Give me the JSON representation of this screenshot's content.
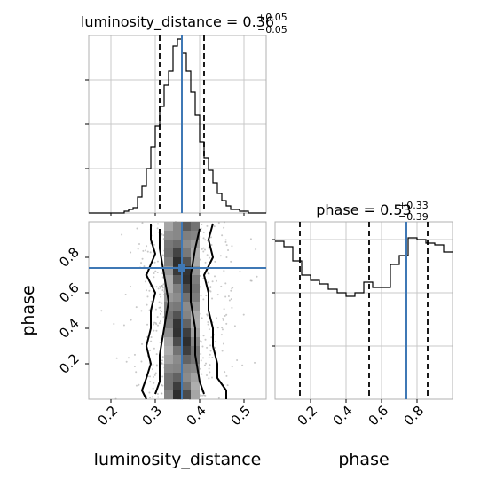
{
  "chart_data": [
    {
      "type": "histogram",
      "panel": "top-left",
      "title": {
        "main": "luminosity_distance = 0.36",
        "sup": "+0.05",
        "sub": "−0.05"
      },
      "xlim": [
        0.15,
        0.55
      ],
      "ylim": [
        0,
        1
      ],
      "yticks_labeled": false,
      "grid": true,
      "bins_x": [
        0.14,
        0.15,
        0.16,
        0.17,
        0.18,
        0.19,
        0.2,
        0.21,
        0.22,
        0.23,
        0.24,
        0.25,
        0.26,
        0.27,
        0.28,
        0.29,
        0.3,
        0.31,
        0.32,
        0.33,
        0.34,
        0.35,
        0.36,
        0.37,
        0.38,
        0.39,
        0.4,
        0.41,
        0.42,
        0.43,
        0.44,
        0.45,
        0.46,
        0.47,
        0.48,
        0.49,
        0.5,
        0.51,
        0.52,
        0.53,
        0.54,
        0.55
      ],
      "counts": [
        0,
        0,
        0,
        0,
        0,
        0,
        0,
        0,
        0,
        0.01,
        0.02,
        0.03,
        0.09,
        0.15,
        0.25,
        0.37,
        0.49,
        0.6,
        0.72,
        0.8,
        0.94,
        0.98,
        0.9,
        0.8,
        0.68,
        0.55,
        0.4,
        0.31,
        0.24,
        0.17,
        0.11,
        0.07,
        0.04,
        0.02,
        0.02,
        0.01,
        0.01,
        0,
        0,
        0,
        0
      ],
      "quantiles": [
        0.31,
        0.36,
        0.41
      ],
      "truth": 0.36
    },
    {
      "type": "heatmap",
      "panel": "bottom-left",
      "xlabel": "luminosity_distance",
      "ylabel": "phase",
      "xlim": [
        0.15,
        0.55
      ],
      "ylim": [
        0,
        1
      ],
      "xticks": [
        "0.2",
        "0.3",
        "0.4",
        "0.5"
      ],
      "yticks": [
        "0.2",
        "0.4",
        "0.6",
        "0.8"
      ],
      "truth": {
        "x": 0.36,
        "y": 0.74
      },
      "contours": [
        {
          "x": [
            0.29,
            0.29,
            0.3,
            0.28,
            0.3,
            0.29,
            0.29,
            0.28,
            0.29,
            0.28,
            0.27,
            0.28
          ],
          "y": [
            0.99,
            0.9,
            0.82,
            0.7,
            0.6,
            0.5,
            0.4,
            0.3,
            0.2,
            0.12,
            0.05,
            0.0
          ]
        },
        {
          "x": [
            0.43,
            0.42,
            0.43,
            0.41,
            0.42,
            0.42,
            0.43,
            0.43,
            0.44,
            0.44,
            0.46,
            0.46
          ],
          "y": [
            0.99,
            0.9,
            0.8,
            0.7,
            0.6,
            0.5,
            0.4,
            0.3,
            0.2,
            0.12,
            0.05,
            0.0
          ]
        },
        {
          "x": [
            0.31,
            0.31,
            0.32,
            0.33,
            0.32,
            0.31,
            0.31,
            0.3
          ],
          "y": [
            0.96,
            0.85,
            0.7,
            0.55,
            0.4,
            0.25,
            0.1,
            0.03
          ]
        },
        {
          "x": [
            0.4,
            0.39,
            0.38,
            0.38,
            0.39,
            0.39,
            0.4,
            0.41
          ],
          "y": [
            0.96,
            0.85,
            0.7,
            0.55,
            0.4,
            0.25,
            0.1,
            0.03
          ]
        }
      ]
    },
    {
      "type": "histogram",
      "panel": "bottom-right",
      "title": {
        "main": "phase = 0.53",
        "sup": "+0.33",
        "sub": "−0.39"
      },
      "xlabel": "phase",
      "xlim": [
        0,
        1
      ],
      "ylim": [
        0,
        1
      ],
      "xticks": [
        "0.2",
        "0.4",
        "0.6",
        "0.8"
      ],
      "yticks_labeled": false,
      "grid": true,
      "bins_x": [
        0,
        0.05,
        0.1,
        0.15,
        0.2,
        0.25,
        0.3,
        0.35,
        0.4,
        0.45,
        0.5,
        0.55,
        0.6,
        0.65,
        0.7,
        0.75,
        0.8,
        0.85,
        0.9,
        0.95,
        1.0
      ],
      "counts": [
        0.89,
        0.86,
        0.78,
        0.7,
        0.67,
        0.65,
        0.62,
        0.6,
        0.58,
        0.6,
        0.66,
        0.63,
        0.63,
        0.76,
        0.81,
        0.91,
        0.9,
        0.88,
        0.87,
        0.83
      ],
      "quantiles": [
        0.14,
        0.53,
        0.86
      ],
      "truth": 0.74
    }
  ],
  "colors": {
    "truth": "#3f78b5",
    "line": "#000000",
    "grid": "#c8c8c8",
    "points": "#9a9a9a"
  }
}
